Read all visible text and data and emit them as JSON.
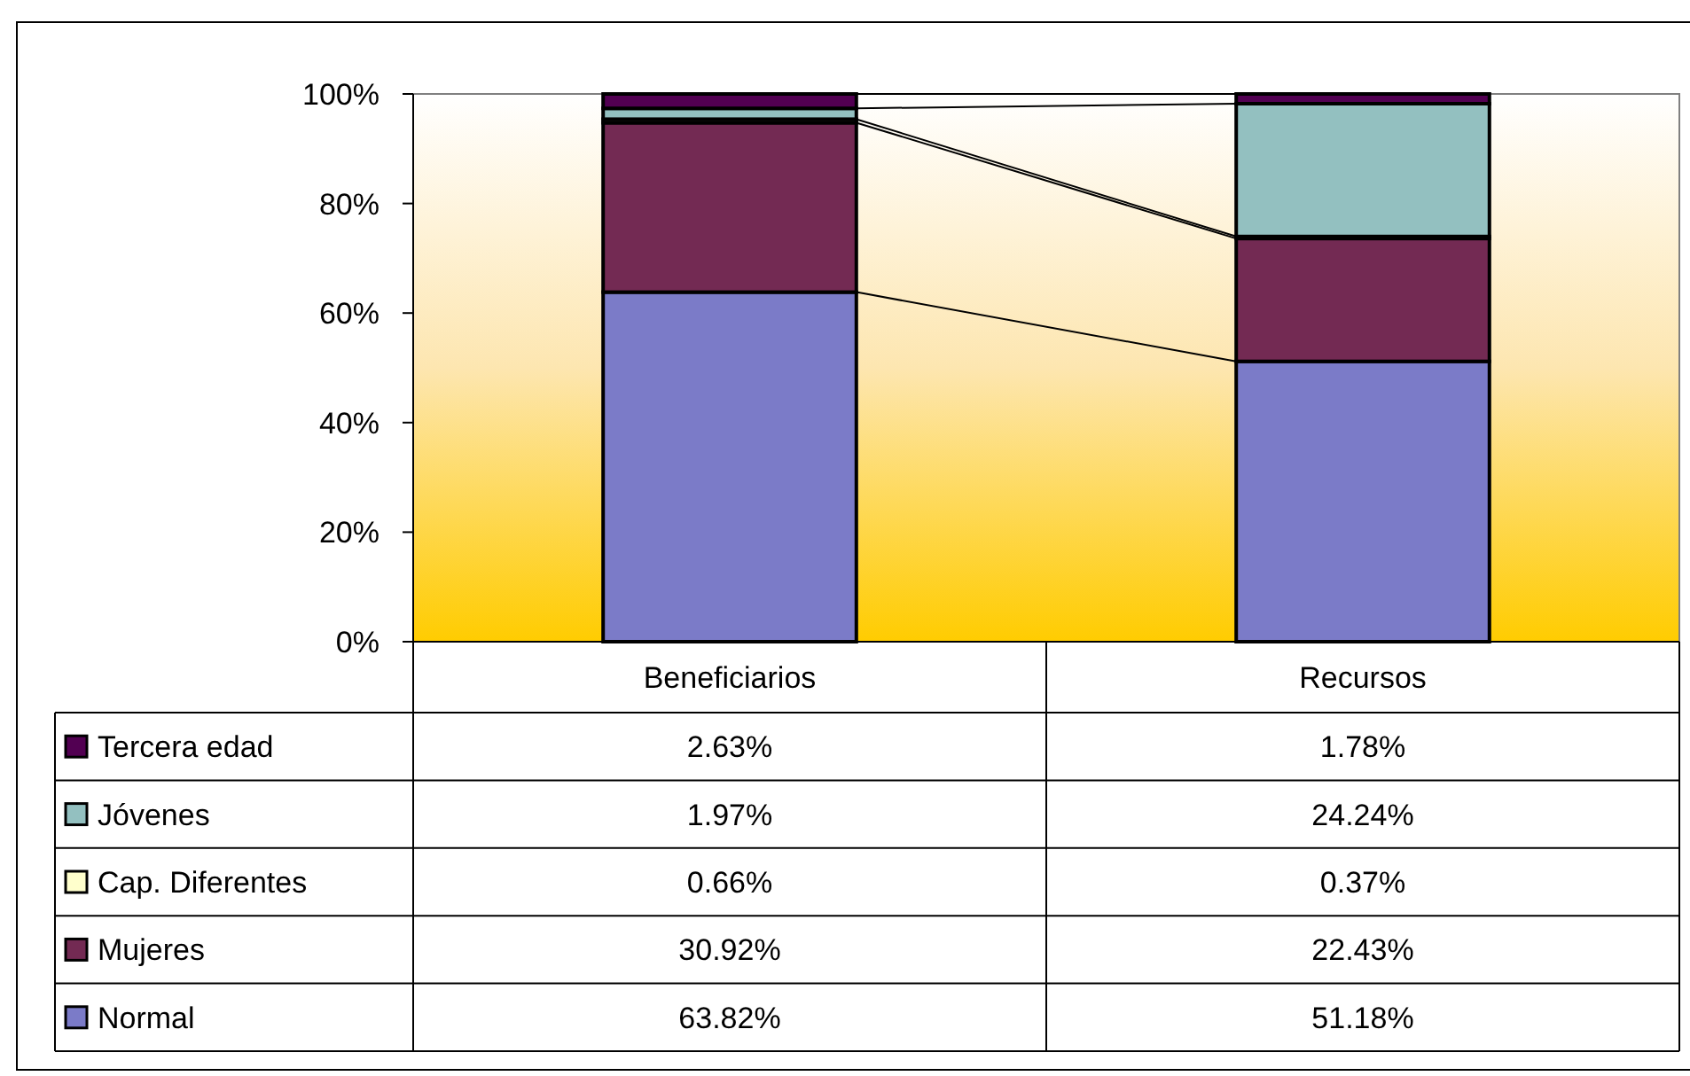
{
  "chart_data": {
    "type": "bar",
    "stacked": true,
    "categories": [
      "Beneficiarios",
      "Recursos"
    ],
    "series": [
      {
        "name": "Normal",
        "color": "#7b7bc8",
        "values": [
          63.82,
          51.18
        ],
        "value_labels": [
          "63.82%",
          "51.18%"
        ]
      },
      {
        "name": "Mujeres",
        "color": "#732a53",
        "values": [
          30.92,
          22.43
        ],
        "value_labels": [
          "30.92%",
          "22.43%"
        ]
      },
      {
        "name": "Cap. Diferentes",
        "color": "#ffffcc",
        "values": [
          0.66,
          0.37
        ],
        "value_labels": [
          "0.66%",
          "0.37%"
        ]
      },
      {
        "name": "Jóvenes",
        "color": "#93c0c0",
        "values": [
          1.97,
          24.24
        ],
        "value_labels": [
          "1.97%",
          "24.24%"
        ]
      },
      {
        "name": "Tercera edad",
        "color": "#520052",
        "values": [
          2.63,
          1.78
        ],
        "value_labels": [
          "2.63%",
          "1.78%"
        ]
      }
    ],
    "ylim": [
      0,
      100
    ],
    "yticks": [
      {
        "value": 0,
        "label": "0%"
      },
      {
        "value": 20,
        "label": "20%"
      },
      {
        "value": 40,
        "label": "40%"
      },
      {
        "value": 60,
        "label": "60%"
      },
      {
        "value": 80,
        "label": "80%"
      },
      {
        "value": 100,
        "label": "100%"
      }
    ],
    "legend": "bottom",
    "grid": false
  }
}
